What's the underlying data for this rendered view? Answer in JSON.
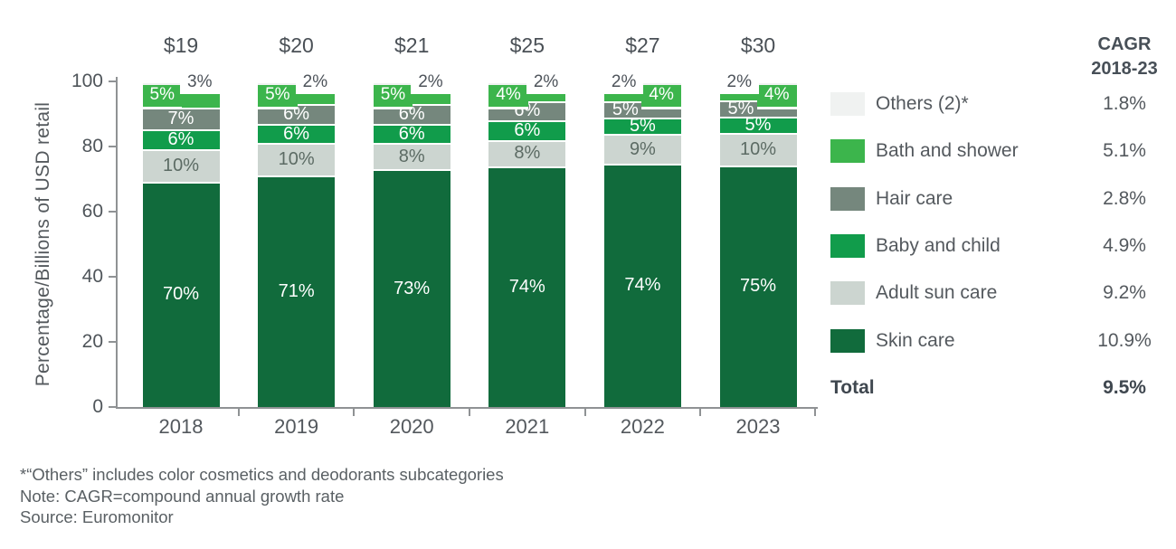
{
  "chart_data": {
    "type": "bar",
    "stacked": true,
    "title": "",
    "ylabel": "Percentage/Billions of USD retail",
    "ylim": [
      0,
      100
    ],
    "yticks": [
      0,
      20,
      40,
      60,
      80,
      100
    ],
    "grid": false,
    "legend_position": "right",
    "categories": [
      "2018",
      "2019",
      "2020",
      "2021",
      "2022",
      "2023"
    ],
    "bar_totals_usd_billions": [
      "$19",
      "$20",
      "$21",
      "$25",
      "$27",
      "$30"
    ],
    "label_suffix": "%",
    "series": [
      {
        "name": "Skin care",
        "color": "#116b3c",
        "text_color": "#ffffff",
        "label_style": "center",
        "values": [
          70,
          71,
          73,
          74,
          74,
          75
        ]
      },
      {
        "name": "Adult sun care",
        "color": "#ccd5d0",
        "text_color": "#5c6b64",
        "label_style": "center",
        "values": [
          10,
          10,
          8,
          8,
          9,
          10
        ]
      },
      {
        "name": "Baby and child",
        "color": "#119c4b",
        "text_color": "#ffffff",
        "label_style": "center",
        "values": [
          6,
          6,
          6,
          6,
          5,
          5
        ]
      },
      {
        "name": "Hair care",
        "color": "#75877d",
        "text_color": "#ffffff",
        "label_style": "center",
        "label_aligns": [
          "center",
          "center",
          "center",
          "center",
          "left",
          "left"
        ],
        "values": [
          7,
          6,
          6,
          6,
          5,
          5
        ]
      },
      {
        "name": "Bath and shower",
        "color": "#3cb54c",
        "text_color": "#ffffff",
        "label_style": "chip-underline",
        "label_sides": [
          "left",
          "left",
          "left",
          "left",
          "right",
          "right"
        ],
        "values": [
          5,
          5,
          5,
          4,
          4,
          4
        ]
      },
      {
        "name": "Others",
        "color": "#f0f2f1",
        "text_color": "#4d535a",
        "label_style": "chip-callout",
        "label_sides": [
          "right",
          "right",
          "right",
          "right",
          "left",
          "left"
        ],
        "values": [
          3,
          2,
          2,
          2,
          2,
          2
        ]
      }
    ]
  },
  "legend": {
    "header_line1": "CAGR",
    "header_line2": "2018-23",
    "rows": [
      {
        "label": "Others (2)*",
        "cagr": "1.8%",
        "color": "#f0f2f1"
      },
      {
        "label": "Bath and shower",
        "cagr": "5.1%",
        "color": "#3cb54c"
      },
      {
        "label": "Hair care",
        "cagr": "2.8%",
        "color": "#75877d"
      },
      {
        "label": "Baby and child",
        "cagr": "4.9%",
        "color": "#119c4b"
      },
      {
        "label": "Adult sun care",
        "cagr": "9.2%",
        "color": "#ccd5d0"
      },
      {
        "label": "Skin care",
        "cagr": "10.9%",
        "color": "#116b3c"
      }
    ],
    "total_label": "Total",
    "total_value": "9.5%"
  },
  "footnotes": [
    "*“Others” includes color cosmetics and deodorants subcategories",
    "Note: CAGR=compound annual growth rate",
    "Source: Euromonitor"
  ]
}
